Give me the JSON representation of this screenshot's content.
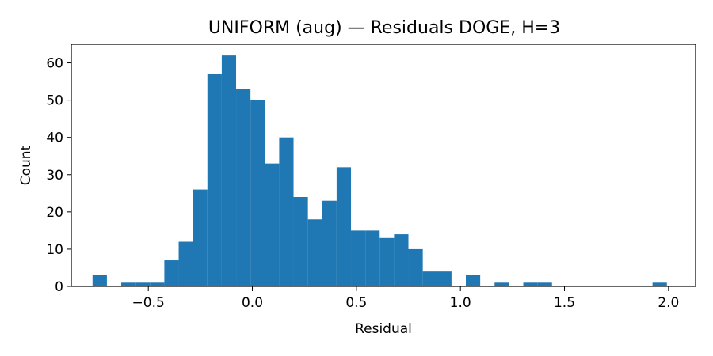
{
  "chart_data": {
    "type": "bar",
    "subtype": "histogram",
    "title": "UNIFORM (aug) — Residuals DOGE, H=3",
    "xlabel": "Residual",
    "ylabel": "Count",
    "xlim": [
      -0.87,
      2.13
    ],
    "ylim": [
      0,
      65
    ],
    "xticks": [
      -0.5,
      0.0,
      0.5,
      1.0,
      1.5,
      2.0
    ],
    "xtick_labels": [
      "−0.5",
      "0.0",
      "0.5",
      "1.0",
      "1.5",
      "2.0"
    ],
    "yticks": [
      0,
      10,
      20,
      30,
      40,
      50,
      60
    ],
    "ytick_labels": [
      "0",
      "10",
      "20",
      "30",
      "40",
      "50",
      "60"
    ],
    "bar_color": "#1f77b4",
    "grid": false,
    "legend": "none",
    "bins": [
      {
        "x0": -0.768,
        "x1": -0.699,
        "count": 3
      },
      {
        "x0": -0.699,
        "x1": -0.63,
        "count": 0
      },
      {
        "x0": -0.63,
        "x1": -0.561,
        "count": 1
      },
      {
        "x0": -0.561,
        "x1": -0.492,
        "count": 1
      },
      {
        "x0": -0.492,
        "x1": -0.423,
        "count": 1
      },
      {
        "x0": -0.423,
        "x1": -0.354,
        "count": 7
      },
      {
        "x0": -0.354,
        "x1": -0.285,
        "count": 12
      },
      {
        "x0": -0.285,
        "x1": -0.216,
        "count": 26
      },
      {
        "x0": -0.216,
        "x1": -0.147,
        "count": 57
      },
      {
        "x0": -0.147,
        "x1": -0.078,
        "count": 62
      },
      {
        "x0": -0.078,
        "x1": -0.009,
        "count": 53
      },
      {
        "x0": -0.009,
        "x1": 0.06,
        "count": 50
      },
      {
        "x0": 0.06,
        "x1": 0.129,
        "count": 33
      },
      {
        "x0": 0.129,
        "x1": 0.198,
        "count": 40
      },
      {
        "x0": 0.198,
        "x1": 0.267,
        "count": 24
      },
      {
        "x0": 0.267,
        "x1": 0.336,
        "count": 18
      },
      {
        "x0": 0.336,
        "x1": 0.405,
        "count": 23
      },
      {
        "x0": 0.405,
        "x1": 0.474,
        "count": 32
      },
      {
        "x0": 0.474,
        "x1": 0.543,
        "count": 15
      },
      {
        "x0": 0.543,
        "x1": 0.612,
        "count": 15
      },
      {
        "x0": 0.612,
        "x1": 0.681,
        "count": 13
      },
      {
        "x0": 0.681,
        "x1": 0.75,
        "count": 14
      },
      {
        "x0": 0.75,
        "x1": 0.819,
        "count": 10
      },
      {
        "x0": 0.819,
        "x1": 0.888,
        "count": 4
      },
      {
        "x0": 0.888,
        "x1": 0.957,
        "count": 4
      },
      {
        "x0": 0.957,
        "x1": 1.026,
        "count": 0
      },
      {
        "x0": 1.026,
        "x1": 1.095,
        "count": 3
      },
      {
        "x0": 1.095,
        "x1": 1.164,
        "count": 0
      },
      {
        "x0": 1.164,
        "x1": 1.233,
        "count": 1
      },
      {
        "x0": 1.233,
        "x1": 1.302,
        "count": 0
      },
      {
        "x0": 1.302,
        "x1": 1.371,
        "count": 1
      },
      {
        "x0": 1.371,
        "x1": 1.44,
        "count": 1
      },
      {
        "x0": 1.44,
        "x1": 1.509,
        "count": 0
      },
      {
        "x0": 1.509,
        "x1": 1.578,
        "count": 0
      },
      {
        "x0": 1.578,
        "x1": 1.647,
        "count": 0
      },
      {
        "x0": 1.647,
        "x1": 1.716,
        "count": 0
      },
      {
        "x0": 1.716,
        "x1": 1.785,
        "count": 0
      },
      {
        "x0": 1.785,
        "x1": 1.854,
        "count": 0
      },
      {
        "x0": 1.854,
        "x1": 1.923,
        "count": 0
      },
      {
        "x0": 1.923,
        "x1": 1.992,
        "count": 1
      }
    ]
  }
}
